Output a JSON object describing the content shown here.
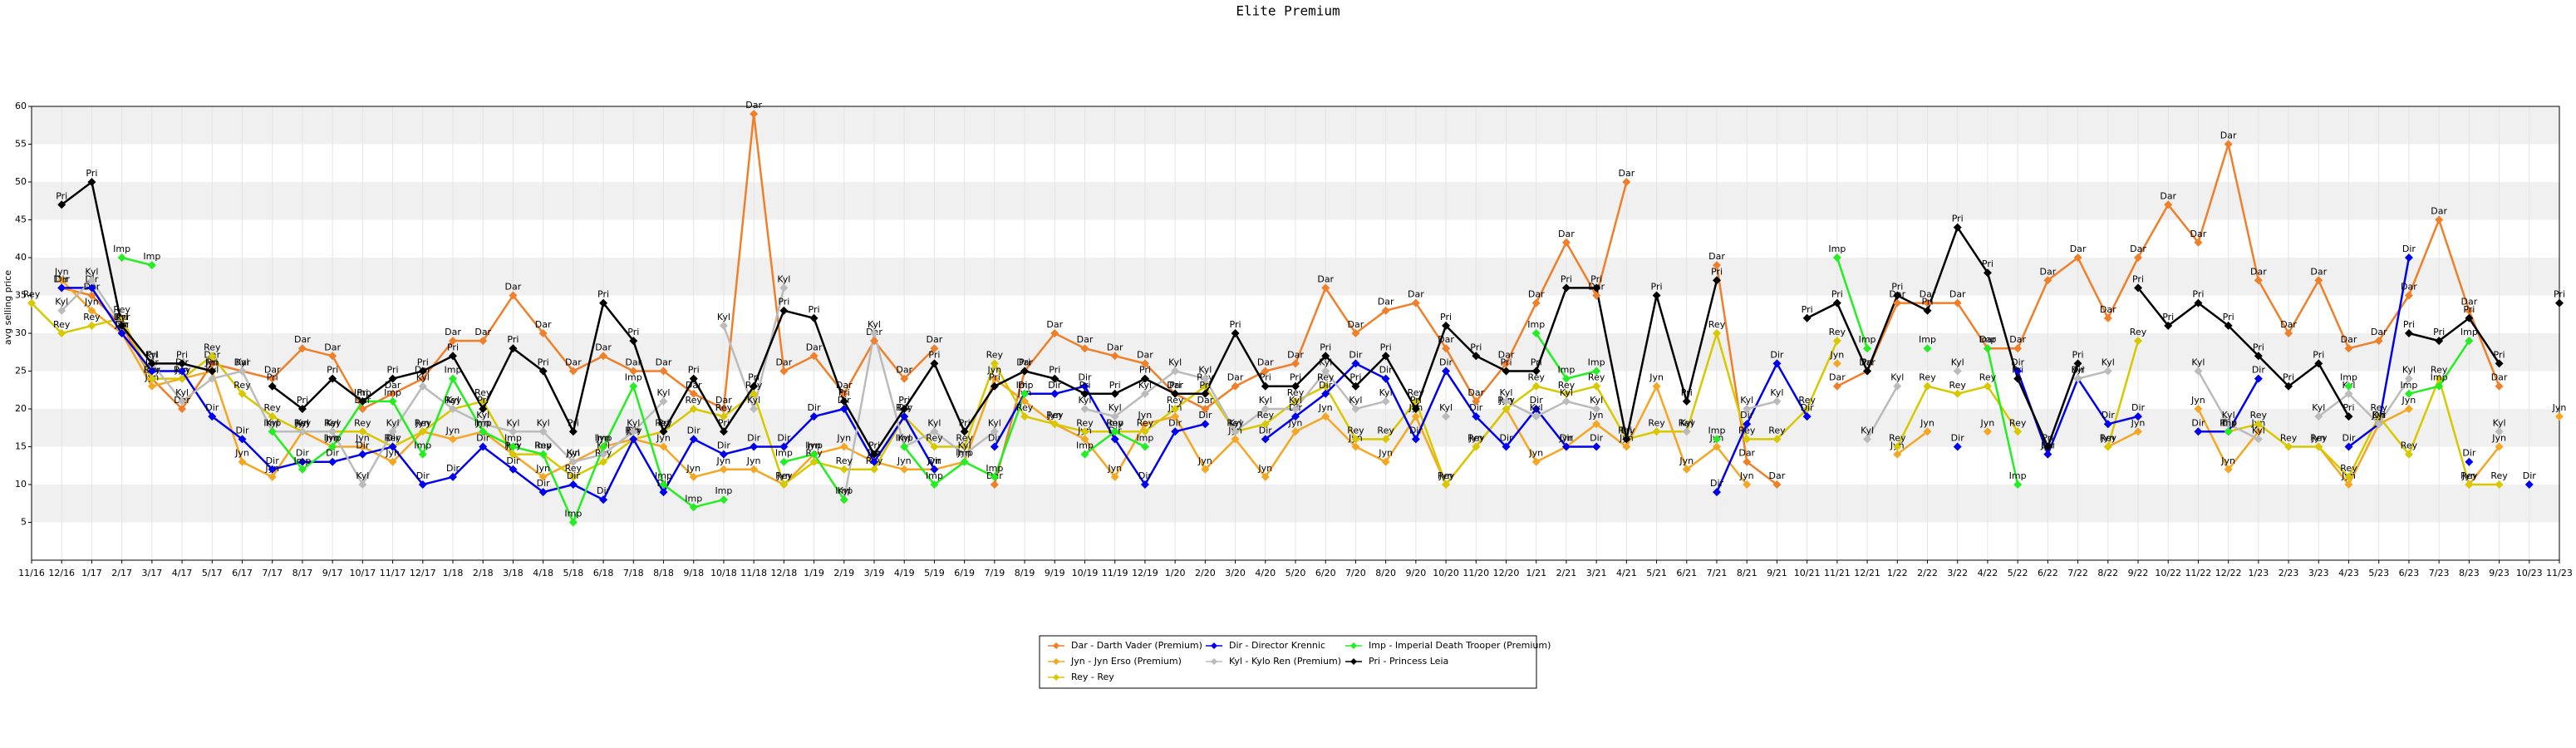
{
  "chart_data": {
    "type": "line",
    "title": "Elite Premium",
    "y_label": "avg selling price",
    "categories": [
      "11/16",
      "12/16",
      "1/17",
      "2/17",
      "3/17",
      "4/17",
      "5/17",
      "6/17",
      "7/17",
      "8/17",
      "9/17",
      "10/17",
      "11/17",
      "12/17",
      "1/18",
      "2/18",
      "3/18",
      "4/18",
      "5/18",
      "6/18",
      "7/18",
      "8/18",
      "9/18",
      "10/18",
      "11/18",
      "12/18",
      "1/19",
      "2/19",
      "3/19",
      "4/19",
      "5/19",
      "6/19",
      "7/19",
      "8/19",
      "9/19",
      "10/19",
      "11/19",
      "12/19",
      "1/20",
      "2/20",
      "3/20",
      "4/20",
      "5/20",
      "6/20",
      "7/20",
      "8/20",
      "9/20",
      "10/20",
      "11/20",
      "12/20",
      "1/21",
      "2/21",
      "3/21",
      "4/21",
      "5/21",
      "6/21",
      "7/21",
      "8/21",
      "9/21",
      "10/21",
      "11/21",
      "12/21",
      "1/22",
      "2/22",
      "3/22",
      "4/22",
      "5/22",
      "6/22",
      "7/22",
      "8/22",
      "9/22",
      "10/22",
      "11/22",
      "12/22",
      "1/23",
      "2/23",
      "3/23",
      "4/23",
      "5/23",
      "6/23",
      "7/23",
      "8/23",
      "9/23",
      "10/23",
      "11/23"
    ],
    "ylim": [
      0,
      60
    ],
    "yticks": [
      5,
      10,
      15,
      20,
      25,
      30,
      35,
      40,
      45,
      50,
      55,
      60
    ],
    "grid": true,
    "series": [
      {
        "name": "Dar - Darth Vader (Premium)",
        "point_label": "Dar",
        "color": "#f07f29",
        "values": [
          null,
          36,
          35,
          31,
          24,
          20,
          26,
          25,
          24,
          28,
          27,
          20,
          22,
          24,
          29,
          29,
          35,
          30,
          25,
          27,
          25,
          25,
          22,
          20,
          59,
          25,
          27,
          22,
          29,
          24,
          28,
          null,
          10,
          25,
          30,
          28,
          27,
          26,
          22,
          20,
          23,
          25,
          26,
          36,
          30,
          33,
          34,
          28,
          21,
          26,
          34,
          42,
          35,
          50,
          null,
          null,
          39,
          13,
          10,
          null,
          23,
          25,
          34,
          34,
          34,
          28,
          28,
          37,
          40,
          32,
          40,
          47,
          42,
          55,
          37,
          30,
          37,
          28,
          29,
          35,
          45,
          33,
          23,
          null,
          null
        ]
      },
      {
        "name": "Jyn - Jyn Erso (Premium)",
        "point_label": "Jyn",
        "color": "#f5a623",
        "values": [
          null,
          37,
          33,
          30,
          23,
          24,
          25,
          13,
          11,
          17,
          15,
          15,
          13,
          17,
          16,
          17,
          14,
          11,
          13,
          15,
          16,
          15,
          11,
          12,
          12,
          10,
          14,
          15,
          13,
          12,
          12,
          13,
          24,
          21,
          18,
          16,
          11,
          18,
          19,
          12,
          16,
          11,
          17,
          19,
          15,
          13,
          19,
          10,
          15,
          20,
          13,
          15,
          18,
          15,
          23,
          12,
          15,
          10,
          null,
          null,
          26,
          null,
          14,
          17,
          null,
          17,
          null,
          14,
          null,
          15,
          17,
          null,
          20,
          12,
          17,
          null,
          15,
          10,
          18,
          20,
          null,
          10,
          15,
          null,
          19
        ]
      },
      {
        "name": "Rey - Rey",
        "point_label": "Rey",
        "color": "#d8c800",
        "values": [
          34,
          30,
          31,
          32,
          24,
          24,
          27,
          22,
          19,
          17,
          17,
          17,
          15,
          17,
          20,
          21,
          14,
          14,
          11,
          13,
          16,
          17,
          20,
          19,
          22,
          10,
          13,
          12,
          12,
          19,
          15,
          15,
          26,
          19,
          18,
          17,
          17,
          17,
          20,
          23,
          17,
          18,
          21,
          23,
          16,
          16,
          21,
          10,
          15,
          20,
          23,
          22,
          23,
          16,
          17,
          17,
          30,
          16,
          16,
          20,
          29,
          null,
          15,
          23,
          22,
          23,
          17,
          null,
          null,
          15,
          29,
          null,
          null,
          17,
          18,
          15,
          15,
          11,
          19,
          14,
          24,
          10,
          10,
          null,
          null
        ]
      },
      {
        "name": "Dir - Director Krennic",
        "point_label": "Dir",
        "color": "#0000ee",
        "values": [
          null,
          36,
          36,
          30,
          25,
          25,
          19,
          16,
          12,
          13,
          13,
          14,
          15,
          10,
          11,
          15,
          12,
          9,
          10,
          8,
          16,
          9,
          16,
          14,
          15,
          15,
          19,
          20,
          13,
          19,
          12,
          null,
          15,
          22,
          22,
          23,
          16,
          10,
          17,
          18,
          null,
          16,
          19,
          22,
          26,
          24,
          16,
          25,
          19,
          15,
          20,
          15,
          15,
          null,
          null,
          null,
          9,
          18,
          26,
          19,
          null,
          null,
          null,
          null,
          15,
          null,
          25,
          14,
          24,
          18,
          19,
          null,
          17,
          17,
          24,
          null,
          null,
          15,
          18,
          40,
          null,
          13,
          null,
          10,
          null
        ]
      },
      {
        "name": "Kyl - Kylo Ren (Premium)",
        "point_label": "Kyl",
        "color": "#bbbbbb",
        "values": [
          null,
          33,
          37,
          31,
          26,
          21,
          24,
          25,
          17,
          17,
          17,
          10,
          17,
          23,
          20,
          18,
          17,
          17,
          13,
          14,
          17,
          21,
          null,
          31,
          20,
          36,
          null,
          8,
          30,
          15,
          17,
          14,
          17,
          null,
          null,
          20,
          19,
          22,
          25,
          24,
          17,
          20,
          20,
          25,
          20,
          21,
          null,
          19,
          null,
          21,
          19,
          21,
          20,
          null,
          null,
          17,
          null,
          20,
          21,
          null,
          null,
          16,
          23,
          null,
          25,
          null,
          null,
          null,
          24,
          25,
          null,
          null,
          25,
          18,
          16,
          null,
          19,
          22,
          18,
          24,
          null,
          null,
          17,
          null,
          null
        ]
      },
      {
        "name": "Imp - Imperial Death Trooper (Premium)",
        "point_label": "Imp",
        "color": "#22ee22",
        "values": [
          null,
          null,
          null,
          40,
          39,
          null,
          null,
          null,
          17,
          12,
          15,
          21,
          21,
          14,
          24,
          17,
          15,
          14,
          5,
          15,
          23,
          10,
          7,
          8,
          null,
          13,
          14,
          8,
          null,
          15,
          10,
          13,
          11,
          22,
          null,
          14,
          17,
          15,
          null,
          null,
          null,
          null,
          null,
          null,
          null,
          null,
          null,
          null,
          null,
          null,
          30,
          24,
          25,
          null,
          null,
          null,
          16,
          null,
          null,
          null,
          40,
          28,
          null,
          28,
          null,
          28,
          10,
          null,
          null,
          null,
          null,
          null,
          null,
          17,
          null,
          null,
          null,
          23,
          null,
          22,
          23,
          29,
          null,
          null,
          null
        ]
      },
      {
        "name": "Pri - Princess Leia",
        "point_label": "Pri",
        "color": "#000000",
        "values": [
          null,
          47,
          50,
          31,
          26,
          26,
          25,
          null,
          23,
          20,
          24,
          21,
          24,
          25,
          27,
          20,
          28,
          25,
          17,
          34,
          29,
          17,
          24,
          17,
          23,
          33,
          32,
          21,
          14,
          20,
          26,
          17,
          23,
          25,
          24,
          22,
          22,
          24,
          22,
          22,
          30,
          23,
          23,
          27,
          23,
          27,
          20,
          31,
          27,
          25,
          25,
          36,
          36,
          16,
          35,
          21,
          37,
          null,
          null,
          32,
          34,
          25,
          35,
          33,
          44,
          38,
          24,
          15,
          26,
          null,
          36,
          31,
          34,
          31,
          27,
          23,
          26,
          19,
          null,
          30,
          29,
          32,
          26,
          null,
          34
        ]
      }
    ]
  }
}
